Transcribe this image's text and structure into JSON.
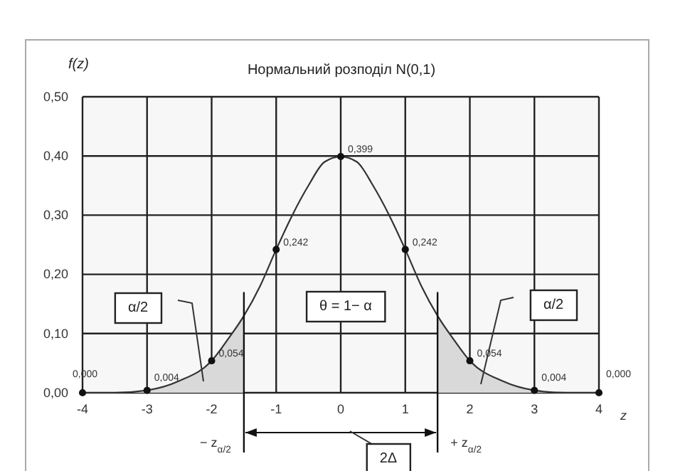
{
  "chart_data": {
    "type": "line",
    "title": "Нормальний розподіл N(0,1)",
    "ylabel": "f(z)",
    "xlabel": "z",
    "xlim": [
      -4,
      4
    ],
    "xticks": [
      -4,
      -3,
      -2,
      -1,
      0,
      1,
      2,
      3,
      4
    ],
    "ylim": [
      0,
      0.5
    ],
    "yticks": [
      {
        "value": 0,
        "label": "0,00"
      },
      {
        "value": 0.1,
        "label": "0,10"
      },
      {
        "value": 0.2,
        "label": "0,20"
      },
      {
        "value": 0.3,
        "label": "0,30"
      },
      {
        "value": 0.4,
        "label": "0,40"
      },
      {
        "value": 0.5,
        "label": "0,50"
      }
    ],
    "grid": true,
    "series": [
      {
        "type": "area",
        "color": "#d9d9d9",
        "x": [
          -4,
          -3.5,
          -3,
          -2.5,
          -2,
          -1.75,
          -1.5
        ],
        "values": [
          0,
          0.0,
          0.004,
          0.02,
          0.054,
          0.09,
          0.13
        ]
      },
      {
        "type": "area",
        "color": "#d9d9d9",
        "x": [
          1.5,
          1.75,
          2,
          2.5,
          3,
          3.5,
          4
        ],
        "values": [
          0.13,
          0.09,
          0.054,
          0.02,
          0.004,
          0.0,
          0
        ]
      },
      {
        "type": "line",
        "color": "#333333",
        "x": [
          -4,
          -3.5,
          -3,
          -2.5,
          -2,
          -1.75,
          -1.5,
          -1.25,
          -1,
          -0.75,
          -0.5,
          -0.25,
          0,
          0.25,
          0.5,
          0.75,
          1,
          1.25,
          1.5,
          1.75,
          2,
          2.5,
          3,
          3.5,
          4
        ],
        "values": [
          0,
          0.0,
          0.004,
          0.02,
          0.054,
          0.09,
          0.13,
          0.18,
          0.242,
          0.3,
          0.35,
          0.39,
          0.399,
          0.39,
          0.35,
          0.3,
          0.242,
          0.18,
          0.13,
          0.09,
          0.054,
          0.02,
          0.004,
          0.0,
          0
        ]
      },
      {
        "type": "scatter",
        "color": "#111111",
        "marker": "circle",
        "x": [
          -4,
          -3,
          -2,
          -1,
          0,
          1,
          2,
          3,
          4
        ],
        "values": [
          0,
          0.004,
          0.054,
          0.242,
          0.399,
          0.242,
          0.054,
          0.004,
          0
        ],
        "value_labels": [
          "0,000",
          "0,004",
          "0,054",
          "0,242",
          "0,399",
          "0,242",
          "0,054",
          "0,004",
          "0,000"
        ]
      }
    ],
    "ref_lines": [
      {
        "axis": "x",
        "value": -1.5,
        "label": "− z$_{α/2}$",
        "color": "#111111"
      },
      {
        "axis": "x",
        "value": 1.5,
        "label": "+ z$_{α/2}$",
        "color": "#111111"
      }
    ],
    "annotations": [
      "α/2",
      "θ = 1− α",
      "α/2",
      "2Δ"
    ]
  }
}
